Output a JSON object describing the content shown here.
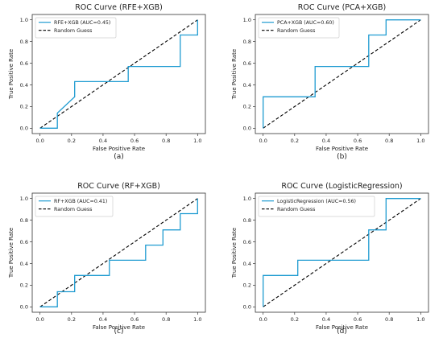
{
  "chart_data": [
    {
      "type": "line",
      "title": "ROC Curve (RFE+XGB)",
      "caption": "(a)",
      "xlabel": "False Positive Rate",
      "ylabel": "True Positive Rate",
      "xlim": [
        0,
        1
      ],
      "ylim": [
        0,
        1
      ],
      "ticks": [
        "0.0",
        "0.2",
        "0.4",
        "0.6",
        "0.8",
        "1.0"
      ],
      "legend_position": "top-left",
      "series": [
        {
          "name": "RFE+XGB (AUC=0.45)",
          "color": "#1f9bd1",
          "style": "solid",
          "x": [
            0,
            0.11,
            0.11,
            0.22,
            0.22,
            0.56,
            0.56,
            0.89,
            0.89,
            1.0,
            1.0
          ],
          "y": [
            0,
            0,
            0.14,
            0.29,
            0.43,
            0.43,
            0.57,
            0.57,
            0.86,
            0.86,
            1.0
          ]
        },
        {
          "name": "Random Guess",
          "color": "#000000",
          "style": "dashed",
          "x": [
            0,
            1
          ],
          "y": [
            0,
            1
          ]
        }
      ]
    },
    {
      "type": "line",
      "title": "ROC Curve (PCA+XGB)",
      "caption": "(b)",
      "xlabel": "False Positive Rate",
      "ylabel": "True Positive Rate",
      "xlim": [
        0,
        1
      ],
      "ylim": [
        0,
        1
      ],
      "ticks": [
        "0.0",
        "0.2",
        "0.4",
        "0.6",
        "0.8",
        "1.0"
      ],
      "legend_position": "top-left",
      "series": [
        {
          "name": "PCA+XGB (AUC=0.60)",
          "color": "#1f9bd1",
          "style": "solid",
          "x": [
            0,
            0,
            0.33,
            0.33,
            0.67,
            0.67,
            0.78,
            0.78,
            1.0
          ],
          "y": [
            0,
            0.29,
            0.29,
            0.57,
            0.57,
            0.86,
            0.86,
            1.0,
            1.0
          ]
        },
        {
          "name": "Random Guess",
          "color": "#000000",
          "style": "dashed",
          "x": [
            0,
            1
          ],
          "y": [
            0,
            1
          ]
        }
      ]
    },
    {
      "type": "line",
      "title": "ROC Curve (RF+XGB)",
      "caption": "(c)",
      "xlabel": "False Positive Rate",
      "ylabel": "True Positive Rate",
      "xlim": [
        0,
        1
      ],
      "ylim": [
        0,
        1
      ],
      "ticks": [
        "0.0",
        "0.2",
        "0.4",
        "0.6",
        "0.8",
        "1.0"
      ],
      "legend_position": "top-left",
      "series": [
        {
          "name": "RF+XGB (AUC=0.41)",
          "color": "#1f9bd1",
          "style": "solid",
          "x": [
            0,
            0.11,
            0.11,
            0.22,
            0.22,
            0.44,
            0.44,
            0.67,
            0.67,
            0.78,
            0.78,
            0.89,
            0.89,
            1.0,
            1.0
          ],
          "y": [
            0,
            0,
            0.14,
            0.14,
            0.29,
            0.29,
            0.43,
            0.43,
            0.57,
            0.57,
            0.71,
            0.71,
            0.86,
            0.86,
            1.0
          ]
        },
        {
          "name": "Random Guess",
          "color": "#000000",
          "style": "dashed",
          "x": [
            0,
            1
          ],
          "y": [
            0,
            1
          ]
        }
      ]
    },
    {
      "type": "line",
      "title": "ROC Curve (LogisticRegression)",
      "caption": "(d)",
      "xlabel": "False Positive Rate",
      "ylabel": "True Positive Rate",
      "xlim": [
        0,
        1
      ],
      "ylim": [
        0,
        1
      ],
      "ticks": [
        "0.0",
        "0.2",
        "0.4",
        "0.6",
        "0.8",
        "1.0"
      ],
      "legend_position": "top-left",
      "series": [
        {
          "name": "LogisticRegression (AUC=0.56)",
          "color": "#1f9bd1",
          "style": "solid",
          "x": [
            0,
            0,
            0.22,
            0.22,
            0.67,
            0.67,
            0.78,
            0.78,
            1.0
          ],
          "y": [
            0,
            0.29,
            0.29,
            0.43,
            0.43,
            0.71,
            0.71,
            1.0,
            1.0
          ]
        },
        {
          "name": "Random Guess",
          "color": "#000000",
          "style": "dashed",
          "x": [
            0,
            1
          ],
          "y": [
            0,
            1
          ]
        }
      ]
    }
  ]
}
